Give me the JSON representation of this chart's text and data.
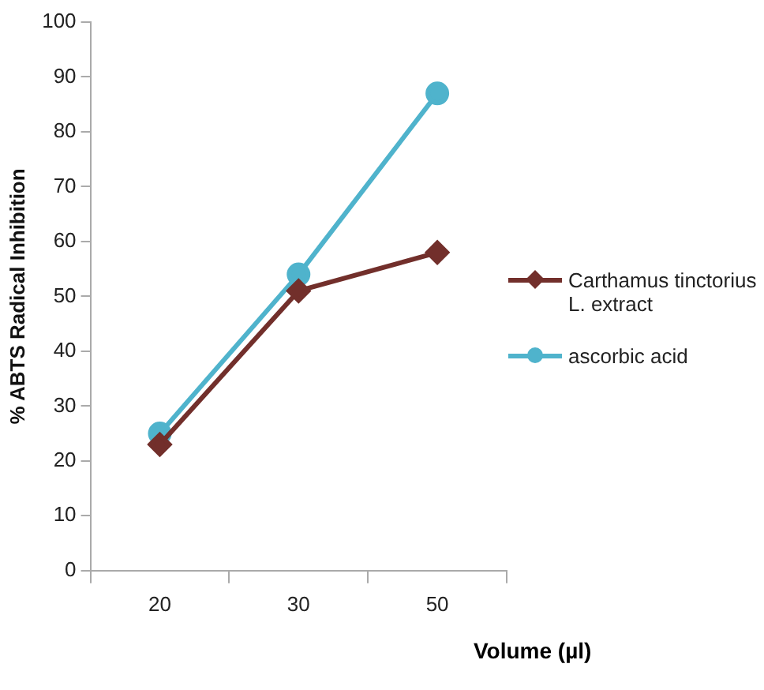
{
  "chart_data": {
    "type": "line",
    "xlabel": "Volume (µl)",
    "ylabel": "% ABTS Radical Inhibition",
    "categories": [
      "20",
      "30",
      "50"
    ],
    "series": [
      {
        "name": "Carthamus tinctorius L. extract",
        "color": "#722f2b",
        "marker": "diamond",
        "values": [
          23,
          51,
          58
        ]
      },
      {
        "name": "ascorbic acid",
        "color": "#4fb3cc",
        "marker": "circle",
        "values": [
          25,
          54,
          87
        ]
      }
    ],
    "ylim": [
      0,
      100
    ],
    "yticks": [
      0,
      10,
      20,
      30,
      40,
      50,
      60,
      70,
      80,
      90,
      100
    ],
    "grid": false,
    "legend": "right"
  }
}
